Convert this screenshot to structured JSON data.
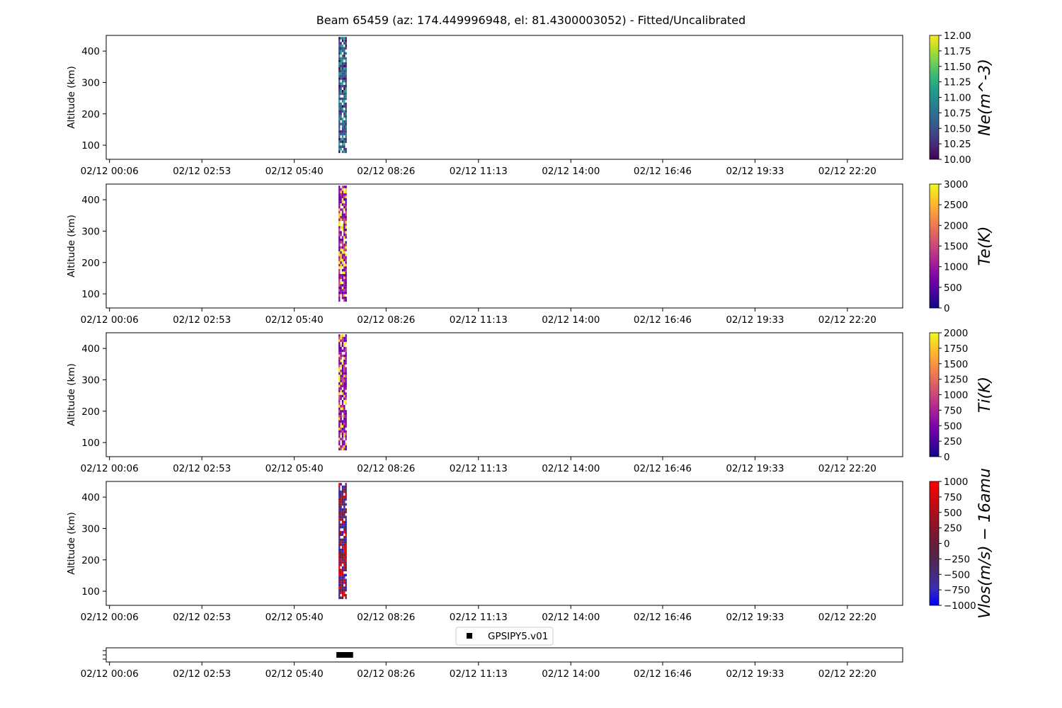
{
  "figure": {
    "title": "Beam 65459 (az: 174.449996948, el: 81.4300003052) - Fitted/Uncalibrated"
  },
  "chart_data": [
    {
      "type": "heatmap",
      "name": "ne",
      "ylabel": "Altitude (km)",
      "ylim": [
        55,
        450
      ],
      "yticks": [
        100,
        200,
        300,
        400
      ],
      "xlim": [
        0,
        24
      ],
      "xtick_hours": [
        0.1,
        2.883,
        5.667,
        8.433,
        11.217,
        14.0,
        16.767,
        19.55,
        22.333
      ],
      "xtick_labels": [
        "02/12 00:06",
        "02/12 02:53",
        "02/12 05:40",
        "02/12 08:26",
        "02/12 11:13",
        "02/12 14:00",
        "02/12 16:46",
        "02/12 19:33",
        "02/12 22:20"
      ],
      "data_time_range_hours": [
        7.0,
        7.25
      ],
      "data_alt_range_km": [
        75,
        445
      ],
      "colorbar": {
        "label": "Ne(m^-3)",
        "colormap": "viridis",
        "range": [
          10.0,
          12.0
        ],
        "tick_labels": [
          "10.00",
          "10.25",
          "10.50",
          "10.75",
          "11.00",
          "11.25",
          "11.50",
          "11.75",
          "12.00"
        ],
        "tick_values": [
          10.0,
          10.25,
          10.5,
          10.75,
          11.0,
          11.25,
          11.5,
          11.75,
          12.0
        ]
      }
    },
    {
      "type": "heatmap",
      "name": "te",
      "ylabel": "Altitude (km)",
      "ylim": [
        55,
        450
      ],
      "yticks": [
        100,
        200,
        300,
        400
      ],
      "xlim": [
        0,
        24
      ],
      "xtick_hours": [
        0.1,
        2.883,
        5.667,
        8.433,
        11.217,
        14.0,
        16.767,
        19.55,
        22.333
      ],
      "xtick_labels": [
        "02/12 00:06",
        "02/12 02:53",
        "02/12 05:40",
        "02/12 08:26",
        "02/12 11:13",
        "02/12 14:00",
        "02/12 16:46",
        "02/12 19:33",
        "02/12 22:20"
      ],
      "data_time_range_hours": [
        7.0,
        7.25
      ],
      "data_alt_range_km": [
        75,
        445
      ],
      "colorbar": {
        "label": "Te(K)",
        "colormap": "plasma",
        "range": [
          0,
          3000
        ],
        "tick_labels": [
          "0",
          "500",
          "1000",
          "1500",
          "2000",
          "2500",
          "3000"
        ],
        "tick_values": [
          0,
          500,
          1000,
          1500,
          2000,
          2500,
          3000
        ]
      }
    },
    {
      "type": "heatmap",
      "name": "ti",
      "ylabel": "Altitude (km)",
      "ylim": [
        55,
        450
      ],
      "yticks": [
        100,
        200,
        300,
        400
      ],
      "xlim": [
        0,
        24
      ],
      "xtick_hours": [
        0.1,
        2.883,
        5.667,
        8.433,
        11.217,
        14.0,
        16.767,
        19.55,
        22.333
      ],
      "xtick_labels": [
        "02/12 00:06",
        "02/12 02:53",
        "02/12 05:40",
        "02/12 08:26",
        "02/12 11:13",
        "02/12 14:00",
        "02/12 16:46",
        "02/12 19:33",
        "02/12 22:20"
      ],
      "data_time_range_hours": [
        7.0,
        7.25
      ],
      "data_alt_range_km": [
        75,
        445
      ],
      "colorbar": {
        "label": "Ti(K)",
        "colormap": "plasma",
        "range": [
          0,
          2000
        ],
        "tick_labels": [
          "0",
          "250",
          "500",
          "750",
          "1000",
          "1250",
          "1500",
          "1750",
          "2000"
        ],
        "tick_values": [
          0,
          250,
          500,
          750,
          1000,
          1250,
          1500,
          1750,
          2000
        ]
      }
    },
    {
      "type": "heatmap",
      "name": "vlos",
      "ylabel": "Altitude (km)",
      "ylim": [
        55,
        450
      ],
      "yticks": [
        100,
        200,
        300,
        400
      ],
      "xlim": [
        0,
        24
      ],
      "xtick_hours": [
        0.1,
        2.883,
        5.667,
        8.433,
        11.217,
        14.0,
        16.767,
        19.55,
        22.333
      ],
      "xtick_labels": [
        "02/12 00:06",
        "02/12 02:53",
        "02/12 05:40",
        "02/12 08:26",
        "02/12 11:13",
        "02/12 14:00",
        "02/12 16:46",
        "02/12 19:33",
        "02/12 22:20"
      ],
      "data_time_range_hours": [
        7.0,
        7.25
      ],
      "data_alt_range_km": [
        75,
        445
      ],
      "colorbar": {
        "label": "Vlos(m/s) − 16amu",
        "colormap": "seismic",
        "range": [
          -1000,
          1000
        ],
        "tick_labels": [
          "−1000",
          "−750",
          "−500",
          "−250",
          "0",
          "250",
          "500",
          "750",
          "1000"
        ],
        "tick_values": [
          -1000,
          -750,
          -500,
          -250,
          0,
          250,
          500,
          750,
          1000
        ]
      }
    },
    {
      "type": "scatter",
      "name": "gps",
      "xlim": [
        0,
        24
      ],
      "xtick_hours": [
        0.1,
        2.883,
        5.667,
        8.433,
        11.217,
        14.0,
        16.767,
        19.55,
        22.333
      ],
      "xtick_labels": [
        "02/12 00:06",
        "02/12 02:53",
        "02/12 05:40",
        "02/12 08:26",
        "02/12 11:13",
        "02/12 14:00",
        "02/12 16:46",
        "02/12 19:33",
        "02/12 22:20"
      ],
      "series": [
        {
          "name": "GPSIPY5.v01",
          "color": "#000000",
          "x_range_hours": [
            7.0,
            7.4
          ]
        }
      ]
    }
  ]
}
